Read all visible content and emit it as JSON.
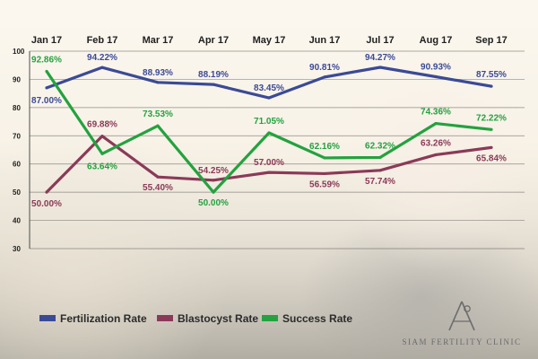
{
  "chart_data": {
    "type": "line",
    "categories": [
      "Jan 17",
      "Feb 17",
      "Mar 17",
      "Apr 17",
      "May 17",
      "Jun 17",
      "Jul 17",
      "Aug 17",
      "Sep 17"
    ],
    "yticks": [
      30,
      40,
      50,
      60,
      70,
      80,
      90,
      100
    ],
    "ylim": [
      30,
      100
    ],
    "grid": true,
    "legend_position": "bottom-left",
    "series": [
      {
        "name": "Fertilization Rate",
        "color": "#3b4a96",
        "values": [
          87.0,
          94.22,
          88.93,
          88.19,
          83.45,
          90.81,
          94.27,
          90.93,
          87.55
        ],
        "labels": [
          "87.00%",
          "94.22%",
          "88.93%",
          "88.19%",
          "83.45%",
          "90.81%",
          "94.27%",
          "90.93%",
          "87.55%"
        ]
      },
      {
        "name": "Blastocyst Rate",
        "color": "#8a3a58",
        "values": [
          50.0,
          69.88,
          55.4,
          54.25,
          57.0,
          56.59,
          57.74,
          63.26,
          65.84
        ],
        "labels": [
          "50.00%",
          "69.88%",
          "55.40%",
          "54.25%",
          "57.00%",
          "56.59%",
          "57.74%",
          "63.26%",
          "65.84%"
        ]
      },
      {
        "name": "Success Rate",
        "color": "#23a23f",
        "values": [
          92.86,
          63.64,
          73.53,
          50.0,
          71.05,
          62.16,
          62.32,
          74.36,
          72.22
        ],
        "labels": [
          "92.86%",
          "63.64%",
          "73.53%",
          "50.00%",
          "71.05%",
          "62.16%",
          "62.32%",
          "74.36%",
          "72.22%"
        ]
      }
    ]
  },
  "brand": {
    "name": "SIAM FERTILITY CLINIC"
  }
}
